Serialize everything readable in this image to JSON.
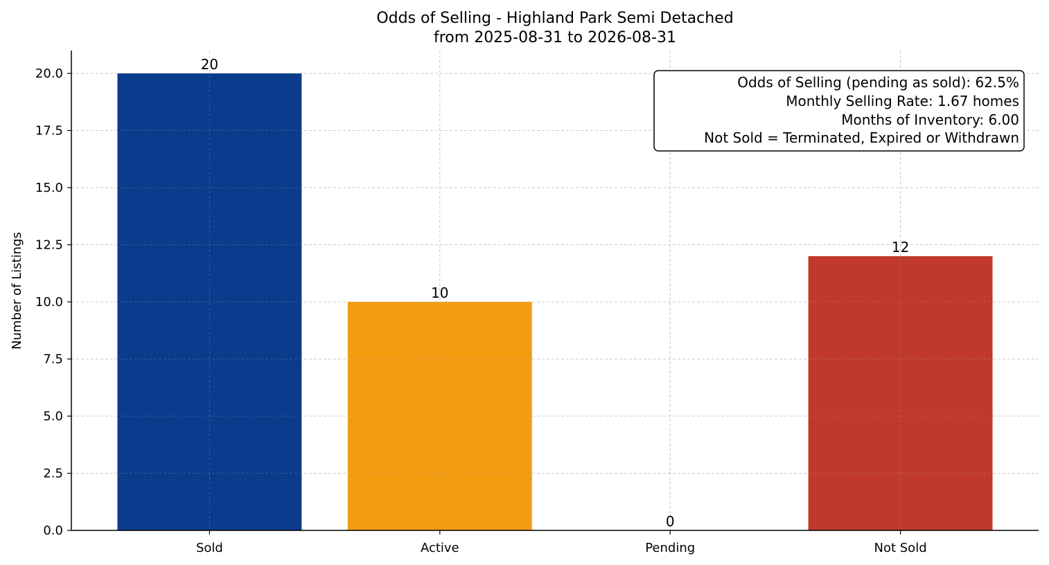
{
  "chart_data": {
    "type": "bar",
    "title": "Odds of Selling - Highland Park Semi Detached",
    "subtitle": "from 2025-08-31 to 2026-08-31",
    "xlabel": "",
    "ylabel": "Number of Listings",
    "categories": [
      "Sold",
      "Active",
      "Pending",
      "Not Sold"
    ],
    "values": [
      20,
      10,
      0,
      12
    ],
    "value_labels": [
      "20",
      "10",
      "0",
      "12"
    ],
    "colors": [
      "#0b3b8c",
      "#f39c12",
      "#7f8c8d",
      "#c0392b"
    ],
    "ylim": [
      0,
      21
    ],
    "yticks": [
      0,
      2.5,
      5,
      7.5,
      10,
      12.5,
      15,
      17.5,
      20
    ],
    "ytick_labels": [
      "0.0",
      "2.5",
      "5.0",
      "7.5",
      "10.0",
      "12.5",
      "15.0",
      "17.5",
      "20.0"
    ],
    "grid": true,
    "info_box": {
      "placement": "top-right",
      "lines": [
        "Odds of Selling (pending as sold): 62.5%",
        "Monthly Selling Rate: 1.67 homes",
        "Months of Inventory: 6.00",
        "Not Sold = Terminated, Expired or Withdrawn"
      ]
    }
  }
}
